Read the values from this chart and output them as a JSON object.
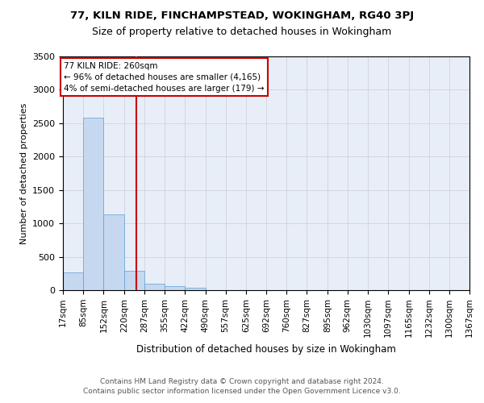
{
  "title1": "77, KILN RIDE, FINCHAMPSTEAD, WOKINGHAM, RG40 3PJ",
  "title2": "Size of property relative to detached houses in Wokingham",
  "xlabel": "Distribution of detached houses by size in Wokingham",
  "ylabel": "Number of detached properties",
  "footer1": "Contains HM Land Registry data © Crown copyright and database right 2024.",
  "footer2": "Contains public sector information licensed under the Open Government Licence v3.0.",
  "annotation_line1": "77 KILN RIDE: 260sqm",
  "annotation_line2": "← 96% of detached houses are smaller (4,165)",
  "annotation_line3": "4% of semi-detached houses are larger (179) →",
  "bar_color": "#c5d8f0",
  "bar_edge_color": "#5a9fd4",
  "ref_line_color": "#cc0000",
  "ref_line_x": 260,
  "bin_edges": [
    17,
    85,
    152,
    220,
    287,
    355,
    422,
    490,
    557,
    625,
    692,
    760,
    827,
    895,
    962,
    1030,
    1097,
    1165,
    1232,
    1300,
    1367
  ],
  "bin_labels": [
    "17sqm",
    "85sqm",
    "152sqm",
    "220sqm",
    "287sqm",
    "355sqm",
    "422sqm",
    "490sqm",
    "557sqm",
    "625sqm",
    "692sqm",
    "760sqm",
    "827sqm",
    "895sqm",
    "962sqm",
    "1030sqm",
    "1097sqm",
    "1165sqm",
    "1232sqm",
    "1300sqm",
    "1367sqm"
  ],
  "bar_heights": [
    270,
    2580,
    1140,
    290,
    95,
    60,
    35,
    0,
    0,
    0,
    0,
    0,
    0,
    0,
    0,
    0,
    0,
    0,
    0,
    0
  ],
  "ylim": [
    0,
    3500
  ],
  "yticks": [
    0,
    500,
    1000,
    1500,
    2000,
    2500,
    3000,
    3500
  ],
  "grid_color": "#cccccc",
  "bg_color": "#e8eef8",
  "title1_fontsize": 9.5,
  "title2_fontsize": 9.0,
  "ylabel_fontsize": 8.0,
  "xlabel_fontsize": 8.5,
  "tick_fontsize": 7.5,
  "annotation_fontsize": 7.5,
  "footer_fontsize": 6.5
}
